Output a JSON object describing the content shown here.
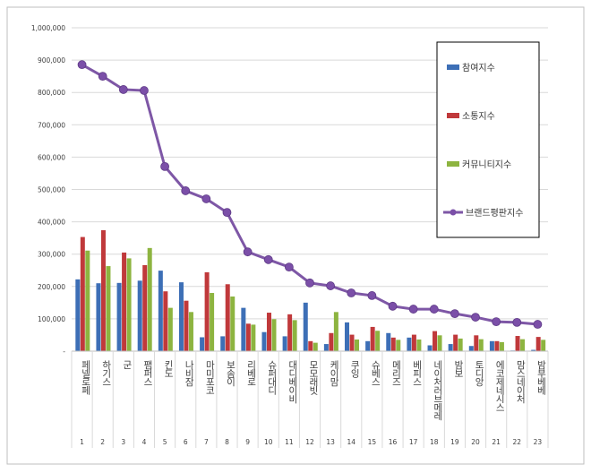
{
  "chart_data": {
    "type": "bar",
    "categories": [
      "페넬로페",
      "하기스",
      "군",
      "팸퍼스",
      "킨도",
      "나비잠",
      "마미포코",
      "보솜이",
      "리베로",
      "슈퍼대디",
      "대디베이비",
      "모모래빗",
      "케이맘",
      "쿠잉",
      "슈베스",
      "메리즈",
      "베피스",
      "네이처러브메레",
      "밤보",
      "토디앙",
      "에코제네시스",
      "맘스네이처",
      "밤부베베"
    ],
    "ranks": [
      "1",
      "2",
      "3",
      "4",
      "5",
      "6",
      "7",
      "8",
      "9",
      "10",
      "11",
      "12",
      "13",
      "14",
      "15",
      "16",
      "17",
      "18",
      "19",
      "20",
      "21",
      "22",
      "23"
    ],
    "series": [
      {
        "name": "참여지수",
        "type": "bar",
        "color": "#3d6fb6",
        "values": [
          222000,
          210000,
          211000,
          218000,
          249000,
          213000,
          43000,
          46000,
          134000,
          59000,
          46000,
          150000,
          22000,
          89000,
          31000,
          56000,
          42000,
          18000,
          22000,
          16000,
          31000,
          2000,
          4000
        ]
      },
      {
        "name": "소통지수",
        "type": "bar",
        "color": "#c0393b",
        "values": [
          353000,
          374000,
          305000,
          266000,
          185000,
          156000,
          244000,
          207000,
          85000,
          119000,
          114000,
          31000,
          56000,
          51000,
          75000,
          42000,
          51000,
          62000,
          51000,
          49000,
          31000,
          47000,
          44000
        ]
      },
      {
        "name": "커뮤니티지수",
        "type": "bar",
        "color": "#8db440",
        "values": [
          311000,
          263000,
          287000,
          319000,
          134000,
          121000,
          180000,
          169000,
          82000,
          99000,
          96000,
          26000,
          121000,
          36000,
          63000,
          35000,
          36000,
          49000,
          39000,
          37000,
          28000,
          37000,
          35000
        ]
      },
      {
        "name": "브랜드평판지수",
        "type": "line",
        "color": "#7e57a6",
        "values": [
          886000,
          850000,
          809000,
          806000,
          571000,
          496000,
          471000,
          429000,
          307000,
          283000,
          260000,
          211000,
          202000,
          180000,
          172000,
          139000,
          130000,
          130000,
          116000,
          105000,
          91000,
          89000,
          83000
        ]
      }
    ],
    "yticks": [
      "-",
      "100,000",
      "200,000",
      "300,000",
      "400,000",
      "500,000",
      "600,000",
      "700,000",
      "800,000",
      "900,000",
      "1,000,000"
    ],
    "ylim": [
      0,
      1000000
    ],
    "grid": true,
    "legend": "right"
  }
}
